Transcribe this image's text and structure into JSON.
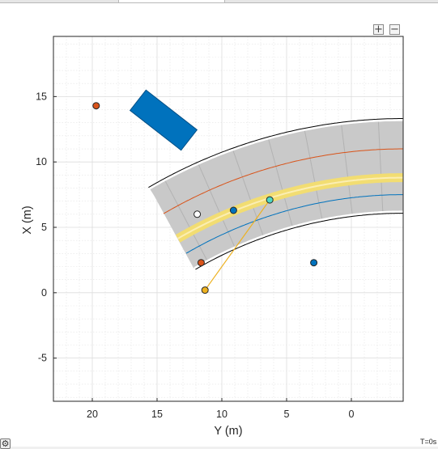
{
  "figure": {
    "zoom_in_label": "+",
    "zoom_out_label": "−",
    "time_label": "T=0s",
    "settings_icon": "gear-icon"
  },
  "colors": {
    "road_surface": "#c9c9c9",
    "road_edge": "#000000",
    "lane_marking": "#f2dd72",
    "ego_vehicle": "#0072bd",
    "blue_path": "#0072bd",
    "red_path": "#d95319",
    "sensor_line": "#edb120",
    "marker_orange": "#edb120",
    "marker_red": "#d95319",
    "marker_cyan": "#4dd8c4",
    "marker_white": "#ffffff"
  },
  "chart_data": {
    "type": "scatter",
    "title": "",
    "xlabel": "Y (m)",
    "ylabel": "X (m)",
    "x_reversed": true,
    "xlim": [
      -4,
      23
    ],
    "ylim": [
      -8.3,
      19.6
    ],
    "xticks": [
      20,
      15,
      10,
      5,
      0
    ],
    "yticks": [
      15,
      10,
      5,
      0,
      -5
    ],
    "grid": "on",
    "minor_grid": "on",
    "road": {
      "center": [
        -4,
        -26
      ],
      "radius_inner": 32.2,
      "radius_outer": 39.2,
      "yellow_line_radius": 34.8,
      "lane_centers": [
        33.5,
        37.0
      ]
    },
    "ego_vehicle": {
      "center_y": 14.5,
      "center_x": 13.2,
      "length": 5.0,
      "width": 2.0,
      "heading_deg": 52
    },
    "markers": [
      {
        "name": "orange",
        "y": 11.3,
        "x": 0.2
      },
      {
        "name": "red_1",
        "y": 11.6,
        "x": 2.3
      },
      {
        "name": "white",
        "y": 11.9,
        "x": 6.0
      },
      {
        "name": "blue_1",
        "y": 9.1,
        "x": 6.3
      },
      {
        "name": "cyan",
        "y": 6.3,
        "x": 7.1
      },
      {
        "name": "blue_2",
        "y": 2.9,
        "x": 2.3
      },
      {
        "name": "red_2",
        "y": 19.7,
        "x": 14.3
      }
    ],
    "sensor_line": {
      "from": {
        "y": 11.3,
        "x": 0.2
      },
      "to": {
        "y": 6.3,
        "x": 7.1
      }
    }
  }
}
